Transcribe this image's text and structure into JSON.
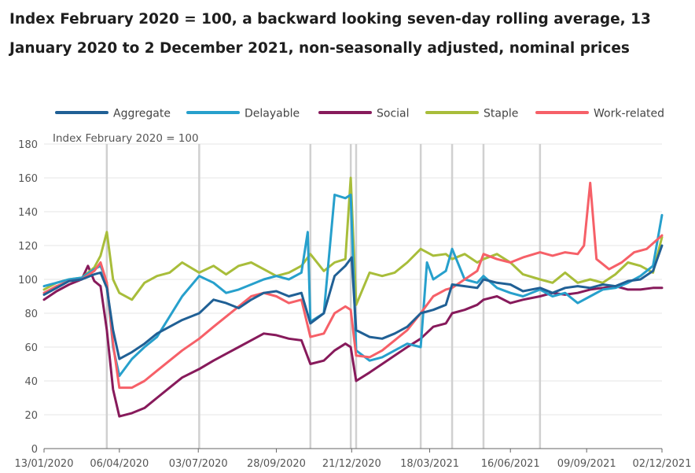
{
  "title": "Index February 2020 = 100, a backward looking seven-day rolling average, 13 January 2020 to 2 December 2021, non-seasonally adjusted, nominal prices",
  "colors": {
    "Aggregate": "#206095",
    "Delayable": "#27a0cc",
    "Social": "#871a5b",
    "Staple": "#a8bd3a",
    "Work-related": "#f66068",
    "grid": "#e6e6e6",
    "event_line": "#d0d0d0",
    "axis": "#666666"
  },
  "chart_data": {
    "type": "line",
    "ylabel": "Index February 2020 = 100",
    "ylim": [
      0,
      180
    ],
    "yticks": [
      0,
      20,
      40,
      60,
      80,
      100,
      120,
      140,
      160,
      180
    ],
    "xlim": [
      "2020-01-13",
      "2021-12-02"
    ],
    "xticks": [
      "13/01/2020",
      "06/04/2020",
      "03/07/2020",
      "28/09/2020",
      "21/12/2020",
      "18/03/2021",
      "16/06/2021",
      "09/09/2021",
      "02/12/2021"
    ],
    "legend_position": "top",
    "grid": true,
    "event_lines": [
      "2020-03-23",
      "2020-07-04",
      "2020-11-05",
      "2020-12-20",
      "2020-12-26",
      "2021-03-08",
      "2021-04-12",
      "2021-05-17",
      "2021-07-19"
    ],
    "series": [
      {
        "name": "Aggregate",
        "points": [
          [
            "2020-01-13",
            91
          ],
          [
            "2020-01-27",
            95
          ],
          [
            "2020-02-10",
            99
          ],
          [
            "2020-02-24",
            100
          ],
          [
            "2020-03-09",
            103
          ],
          [
            "2020-03-16",
            104
          ],
          [
            "2020-03-23",
            95
          ],
          [
            "2020-03-30",
            70
          ],
          [
            "2020-04-06",
            53
          ],
          [
            "2020-04-20",
            57
          ],
          [
            "2020-05-04",
            62
          ],
          [
            "2020-05-18",
            68
          ],
          [
            "2020-06-01",
            72
          ],
          [
            "2020-06-15",
            76
          ],
          [
            "2020-07-04",
            80
          ],
          [
            "2020-07-20",
            88
          ],
          [
            "2020-08-03",
            86
          ],
          [
            "2020-08-17",
            83
          ],
          [
            "2020-08-31",
            88
          ],
          [
            "2020-09-14",
            92
          ],
          [
            "2020-09-28",
            93
          ],
          [
            "2020-10-12",
            90
          ],
          [
            "2020-10-26",
            92
          ],
          [
            "2020-11-05",
            74
          ],
          [
            "2020-11-20",
            80
          ],
          [
            "2020-12-02",
            102
          ],
          [
            "2020-12-14",
            108
          ],
          [
            "2020-12-21",
            113
          ],
          [
            "2020-12-26",
            70
          ],
          [
            "2021-01-10",
            66
          ],
          [
            "2021-01-24",
            65
          ],
          [
            "2021-02-07",
            68
          ],
          [
            "2021-02-21",
            72
          ],
          [
            "2021-03-08",
            80
          ],
          [
            "2021-03-22",
            82
          ],
          [
            "2021-04-05",
            85
          ],
          [
            "2021-04-12",
            97
          ],
          [
            "2021-04-26",
            96
          ],
          [
            "2021-05-10",
            95
          ],
          [
            "2021-05-17",
            100
          ],
          [
            "2021-06-01",
            98
          ],
          [
            "2021-06-16",
            97
          ],
          [
            "2021-06-30",
            93
          ],
          [
            "2021-07-19",
            95
          ],
          [
            "2021-08-02",
            92
          ],
          [
            "2021-08-16",
            95
          ],
          [
            "2021-08-30",
            96
          ],
          [
            "2021-09-13",
            95
          ],
          [
            "2021-09-27",
            97
          ],
          [
            "2021-10-11",
            96
          ],
          [
            "2021-10-25",
            99
          ],
          [
            "2021-11-08",
            100
          ],
          [
            "2021-11-22",
            105
          ],
          [
            "2021-12-02",
            120
          ]
        ]
      },
      {
        "name": "Delayable",
        "points": [
          [
            "2020-01-13",
            96
          ],
          [
            "2020-01-27",
            98
          ],
          [
            "2020-02-10",
            100
          ],
          [
            "2020-02-24",
            101
          ],
          [
            "2020-03-09",
            106
          ],
          [
            "2020-03-16",
            108
          ],
          [
            "2020-03-23",
            98
          ],
          [
            "2020-03-30",
            60
          ],
          [
            "2020-04-06",
            43
          ],
          [
            "2020-04-20",
            53
          ],
          [
            "2020-05-04",
            60
          ],
          [
            "2020-05-18",
            66
          ],
          [
            "2020-06-01",
            78
          ],
          [
            "2020-06-15",
            90
          ],
          [
            "2020-07-04",
            102
          ],
          [
            "2020-07-20",
            98
          ],
          [
            "2020-08-03",
            92
          ],
          [
            "2020-08-17",
            94
          ],
          [
            "2020-08-31",
            97
          ],
          [
            "2020-09-14",
            100
          ],
          [
            "2020-09-28",
            102
          ],
          [
            "2020-10-12",
            100
          ],
          [
            "2020-10-26",
            104
          ],
          [
            "2020-11-02",
            128
          ],
          [
            "2020-11-05",
            75
          ],
          [
            "2020-11-20",
            80
          ],
          [
            "2020-12-02",
            150
          ],
          [
            "2020-12-14",
            148
          ],
          [
            "2020-12-20",
            150
          ],
          [
            "2020-12-26",
            58
          ],
          [
            "2021-01-10",
            52
          ],
          [
            "2021-01-24",
            54
          ],
          [
            "2021-02-07",
            58
          ],
          [
            "2021-02-21",
            62
          ],
          [
            "2021-03-08",
            60
          ],
          [
            "2021-03-15",
            110
          ],
          [
            "2021-03-22",
            100
          ],
          [
            "2021-04-05",
            105
          ],
          [
            "2021-04-12",
            118
          ],
          [
            "2021-04-26",
            100
          ],
          [
            "2021-05-10",
            98
          ],
          [
            "2021-05-17",
            102
          ],
          [
            "2021-06-01",
            95
          ],
          [
            "2021-06-16",
            92
          ],
          [
            "2021-06-30",
            90
          ],
          [
            "2021-07-19",
            94
          ],
          [
            "2021-08-02",
            90
          ],
          [
            "2021-08-16",
            92
          ],
          [
            "2021-08-30",
            86
          ],
          [
            "2021-09-13",
            90
          ],
          [
            "2021-09-27",
            94
          ],
          [
            "2021-10-11",
            95
          ],
          [
            "2021-10-25",
            98
          ],
          [
            "2021-11-08",
            102
          ],
          [
            "2021-11-22",
            108
          ],
          [
            "2021-12-02",
            138
          ]
        ]
      },
      {
        "name": "Social",
        "points": [
          [
            "2020-01-13",
            88
          ],
          [
            "2020-01-27",
            93
          ],
          [
            "2020-02-10",
            97
          ],
          [
            "2020-02-24",
            100
          ],
          [
            "2020-03-02",
            108
          ],
          [
            "2020-03-09",
            99
          ],
          [
            "2020-03-16",
            96
          ],
          [
            "2020-03-23",
            70
          ],
          [
            "2020-03-30",
            35
          ],
          [
            "2020-04-06",
            19
          ],
          [
            "2020-04-20",
            21
          ],
          [
            "2020-05-04",
            24
          ],
          [
            "2020-05-18",
            30
          ],
          [
            "2020-06-01",
            36
          ],
          [
            "2020-06-15",
            42
          ],
          [
            "2020-07-04",
            47
          ],
          [
            "2020-07-20",
            52
          ],
          [
            "2020-08-03",
            56
          ],
          [
            "2020-08-17",
            60
          ],
          [
            "2020-08-31",
            64
          ],
          [
            "2020-09-14",
            68
          ],
          [
            "2020-09-28",
            67
          ],
          [
            "2020-10-12",
            65
          ],
          [
            "2020-10-26",
            64
          ],
          [
            "2020-11-05",
            50
          ],
          [
            "2020-11-20",
            52
          ],
          [
            "2020-12-02",
            58
          ],
          [
            "2020-12-14",
            62
          ],
          [
            "2020-12-20",
            60
          ],
          [
            "2020-12-26",
            40
          ],
          [
            "2021-01-10",
            45
          ],
          [
            "2021-01-24",
            50
          ],
          [
            "2021-02-07",
            55
          ],
          [
            "2021-02-21",
            60
          ],
          [
            "2021-03-08",
            65
          ],
          [
            "2021-03-22",
            72
          ],
          [
            "2021-04-05",
            74
          ],
          [
            "2021-04-12",
            80
          ],
          [
            "2021-04-26",
            82
          ],
          [
            "2021-05-10",
            85
          ],
          [
            "2021-05-17",
            88
          ],
          [
            "2021-06-01",
            90
          ],
          [
            "2021-06-16",
            86
          ],
          [
            "2021-06-30",
            88
          ],
          [
            "2021-07-19",
            90
          ],
          [
            "2021-08-02",
            92
          ],
          [
            "2021-08-16",
            91
          ],
          [
            "2021-08-30",
            92
          ],
          [
            "2021-09-13",
            94
          ],
          [
            "2021-09-27",
            95
          ],
          [
            "2021-10-11",
            96
          ],
          [
            "2021-10-25",
            94
          ],
          [
            "2021-11-08",
            94
          ],
          [
            "2021-11-22",
            95
          ],
          [
            "2021-12-02",
            95
          ]
        ]
      },
      {
        "name": "Staple",
        "points": [
          [
            "2020-01-13",
            94
          ],
          [
            "2020-01-27",
            98
          ],
          [
            "2020-02-10",
            100
          ],
          [
            "2020-02-24",
            101
          ],
          [
            "2020-03-09",
            107
          ],
          [
            "2020-03-16",
            114
          ],
          [
            "2020-03-23",
            128
          ],
          [
            "2020-03-30",
            100
          ],
          [
            "2020-04-06",
            92
          ],
          [
            "2020-04-20",
            88
          ],
          [
            "2020-05-04",
            98
          ],
          [
            "2020-05-18",
            102
          ],
          [
            "2020-06-01",
            104
          ],
          [
            "2020-06-15",
            110
          ],
          [
            "2020-07-04",
            104
          ],
          [
            "2020-07-20",
            108
          ],
          [
            "2020-08-03",
            103
          ],
          [
            "2020-08-17",
            108
          ],
          [
            "2020-08-31",
            110
          ],
          [
            "2020-09-14",
            106
          ],
          [
            "2020-09-28",
            102
          ],
          [
            "2020-10-12",
            104
          ],
          [
            "2020-10-26",
            108
          ],
          [
            "2020-11-05",
            115
          ],
          [
            "2020-11-20",
            105
          ],
          [
            "2020-12-02",
            110
          ],
          [
            "2020-12-14",
            112
          ],
          [
            "2020-12-20",
            160
          ],
          [
            "2020-12-26",
            85
          ],
          [
            "2021-01-10",
            104
          ],
          [
            "2021-01-24",
            102
          ],
          [
            "2021-02-07",
            104
          ],
          [
            "2021-02-21",
            110
          ],
          [
            "2021-03-08",
            118
          ],
          [
            "2021-03-22",
            114
          ],
          [
            "2021-04-05",
            115
          ],
          [
            "2021-04-12",
            112
          ],
          [
            "2021-04-26",
            115
          ],
          [
            "2021-05-10",
            110
          ],
          [
            "2021-05-17",
            112
          ],
          [
            "2021-06-01",
            115
          ],
          [
            "2021-06-16",
            110
          ],
          [
            "2021-06-30",
            103
          ],
          [
            "2021-07-19",
            100
          ],
          [
            "2021-08-02",
            98
          ],
          [
            "2021-08-16",
            104
          ],
          [
            "2021-08-30",
            98
          ],
          [
            "2021-09-13",
            100
          ],
          [
            "2021-09-27",
            98
          ],
          [
            "2021-10-11",
            103
          ],
          [
            "2021-10-25",
            110
          ],
          [
            "2021-11-08",
            108
          ],
          [
            "2021-11-22",
            104
          ],
          [
            "2021-12-02",
            125
          ]
        ]
      },
      {
        "name": "Work-related",
        "points": [
          [
            "2020-01-13",
            92
          ],
          [
            "2020-01-27",
            96
          ],
          [
            "2020-02-10",
            99
          ],
          [
            "2020-02-24",
            100
          ],
          [
            "2020-03-09",
            105
          ],
          [
            "2020-03-16",
            110
          ],
          [
            "2020-03-23",
            98
          ],
          [
            "2020-03-30",
            62
          ],
          [
            "2020-04-06",
            36
          ],
          [
            "2020-04-20",
            36
          ],
          [
            "2020-05-04",
            40
          ],
          [
            "2020-05-18",
            46
          ],
          [
            "2020-06-01",
            52
          ],
          [
            "2020-06-15",
            58
          ],
          [
            "2020-07-04",
            65
          ],
          [
            "2020-07-20",
            72
          ],
          [
            "2020-08-03",
            78
          ],
          [
            "2020-08-17",
            84
          ],
          [
            "2020-08-31",
            90
          ],
          [
            "2020-09-14",
            92
          ],
          [
            "2020-09-28",
            90
          ],
          [
            "2020-10-12",
            86
          ],
          [
            "2020-10-26",
            88
          ],
          [
            "2020-11-05",
            66
          ],
          [
            "2020-11-20",
            68
          ],
          [
            "2020-12-02",
            80
          ],
          [
            "2020-12-14",
            84
          ],
          [
            "2020-12-20",
            82
          ],
          [
            "2020-12-26",
            55
          ],
          [
            "2021-01-10",
            54
          ],
          [
            "2021-01-24",
            58
          ],
          [
            "2021-02-07",
            64
          ],
          [
            "2021-02-21",
            70
          ],
          [
            "2021-03-08",
            80
          ],
          [
            "2021-03-22",
            90
          ],
          [
            "2021-04-05",
            94
          ],
          [
            "2021-04-12",
            95
          ],
          [
            "2021-04-26",
            100
          ],
          [
            "2021-05-10",
            105
          ],
          [
            "2021-05-17",
            115
          ],
          [
            "2021-06-01",
            112
          ],
          [
            "2021-06-16",
            110
          ],
          [
            "2021-06-30",
            113
          ],
          [
            "2021-07-19",
            116
          ],
          [
            "2021-08-02",
            114
          ],
          [
            "2021-08-16",
            116
          ],
          [
            "2021-08-30",
            115
          ],
          [
            "2021-09-06",
            120
          ],
          [
            "2021-09-13",
            157
          ],
          [
            "2021-09-20",
            112
          ],
          [
            "2021-10-04",
            106
          ],
          [
            "2021-10-18",
            110
          ],
          [
            "2021-11-01",
            116
          ],
          [
            "2021-11-15",
            118
          ],
          [
            "2021-12-02",
            126
          ]
        ]
      }
    ]
  }
}
